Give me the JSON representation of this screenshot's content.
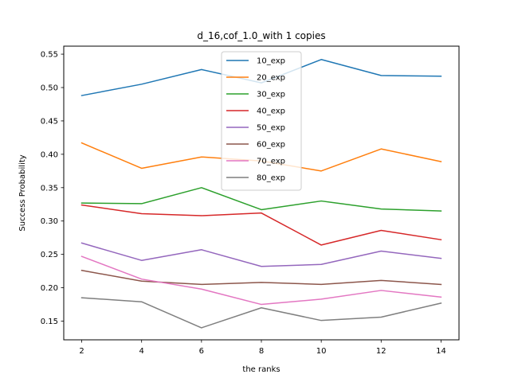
{
  "chart_data": {
    "type": "line",
    "title": "d_16,cof_1.0_with 1 copies",
    "xlabel": "the ranks",
    "ylabel": "Success Probability",
    "x": [
      2,
      4,
      6,
      8,
      10,
      12,
      14
    ],
    "xticks": [
      2,
      4,
      6,
      8,
      10,
      12,
      14
    ],
    "yticks": [
      0.15,
      0.2,
      0.25,
      0.3,
      0.35,
      0.4,
      0.45,
      0.5,
      0.55
    ],
    "xlim": [
      1.4,
      14.6
    ],
    "ylim": [
      0.122,
      0.562
    ],
    "legend_position": "top-center",
    "grid": false,
    "series": [
      {
        "name": "10_exp",
        "color": "#1f77b4",
        "values": [
          0.488,
          0.505,
          0.527,
          0.507,
          0.542,
          0.518,
          0.517
        ]
      },
      {
        "name": "20_exp",
        "color": "#ff7f0e",
        "values": [
          0.417,
          0.379,
          0.396,
          0.39,
          0.375,
          0.408,
          0.389
        ]
      },
      {
        "name": "30_exp",
        "color": "#2ca02c",
        "values": [
          0.327,
          0.326,
          0.35,
          0.317,
          0.33,
          0.318,
          0.315
        ]
      },
      {
        "name": "40_exp",
        "color": "#d62728",
        "values": [
          0.324,
          0.311,
          0.308,
          0.312,
          0.264,
          0.286,
          0.272
        ]
      },
      {
        "name": "50_exp",
        "color": "#9467bd",
        "values": [
          0.267,
          0.241,
          0.257,
          0.232,
          0.235,
          0.255,
          0.244
        ]
      },
      {
        "name": "60_exp",
        "color": "#8c564b",
        "values": [
          0.226,
          0.21,
          0.205,
          0.208,
          0.205,
          0.211,
          0.205
        ]
      },
      {
        "name": "70_exp",
        "color": "#e377c2",
        "values": [
          0.247,
          0.213,
          0.198,
          0.175,
          0.183,
          0.196,
          0.186
        ]
      },
      {
        "name": "80_exp",
        "color": "#7f7f7f",
        "values": [
          0.185,
          0.179,
          0.14,
          0.17,
          0.151,
          0.156,
          0.177
        ]
      }
    ]
  }
}
